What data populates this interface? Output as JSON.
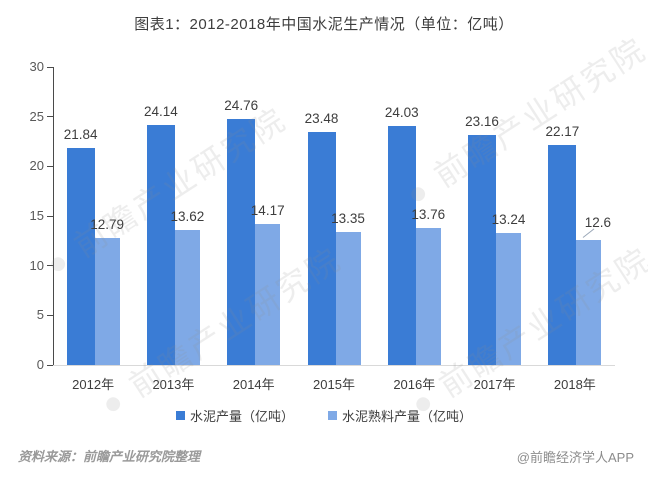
{
  "title": "图表1：2012-2018年中国水泥生产情况（单位：亿吨）",
  "chart_data": {
    "type": "bar",
    "title": "图表1：2012-2018年中国水泥生产情况（单位：亿吨）",
    "categories": [
      "2012年",
      "2013年",
      "2014年",
      "2015年",
      "2016年",
      "2017年",
      "2018年"
    ],
    "series": [
      {
        "name": "水泥产量（亿吨）",
        "color": "#3a7cd5",
        "values": [
          21.84,
          24.14,
          24.76,
          23.48,
          24.03,
          23.16,
          22.17
        ]
      },
      {
        "name": "水泥熟料产量（亿吨）",
        "color": "#7fa9e6",
        "values": [
          12.79,
          13.62,
          14.17,
          13.35,
          13.76,
          13.24,
          12.6
        ]
      }
    ],
    "xlabel": "",
    "ylabel": "",
    "ylim": [
      0,
      30
    ],
    "yticks": [
      0,
      5,
      10,
      15,
      20,
      25,
      30
    ],
    "grid": false,
    "legend_position": "bottom",
    "value_labels": true
  },
  "watermark": {
    "text": "前瞻产业研究院",
    "bullet": "●"
  },
  "footer": {
    "source": "资料来源：前瞻产业研究院整理",
    "brand": "@前瞻经济学人APP"
  },
  "colors": {
    "bar_primary": "#3a7cd5",
    "bar_secondary": "#7fa9e6",
    "y_axis_line": "#4a4a4a",
    "x_axis_line": "#d9d9d9",
    "value_label": "#3d3d3d",
    "axis_label": "#595959"
  }
}
